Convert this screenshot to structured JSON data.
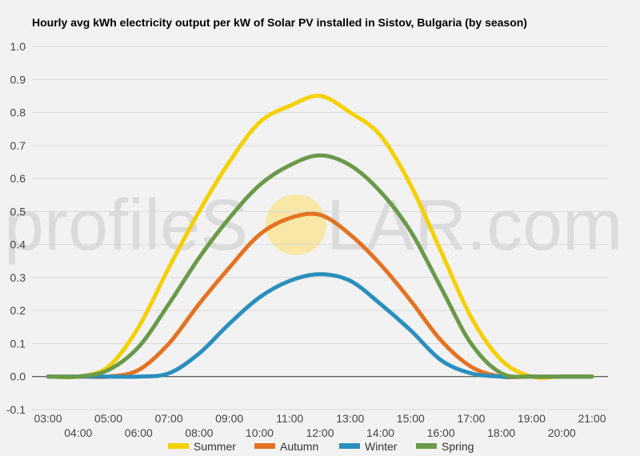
{
  "watermark": {
    "text_left": "profileS",
    "text_right": "LAR.com",
    "sun_color": "#f8e7a5"
  },
  "chart_data": {
    "type": "line",
    "title": "Hourly avg kWh electricity output per kW of Solar PV installed in Sistov, Bulgaria (by season)",
    "xlabel": "",
    "ylabel": "",
    "ylim": [
      -0.1,
      1.0
    ],
    "yticks": [
      "-0.1",
      "0.0",
      "0.1",
      "0.2",
      "0.3",
      "0.4",
      "0.5",
      "0.6",
      "0.7",
      "0.8",
      "0.9",
      "1.0"
    ],
    "x": [
      "03:00",
      "04:00",
      "05:00",
      "06:00",
      "07:00",
      "08:00",
      "09:00",
      "10:00",
      "11:00",
      "12:00",
      "13:00",
      "14:00",
      "15:00",
      "16:00",
      "17:00",
      "18:00",
      "19:00",
      "20:00",
      "21:00"
    ],
    "grid": true,
    "legend_position": "bottom",
    "series": [
      {
        "name": "Summer",
        "color": "#f5d000",
        "values": [
          0.0,
          0.0,
          0.03,
          0.15,
          0.33,
          0.5,
          0.65,
          0.77,
          0.82,
          0.85,
          0.8,
          0.73,
          0.58,
          0.38,
          0.18,
          0.05,
          0.0,
          0.0,
          0.0
        ]
      },
      {
        "name": "Autumn",
        "color": "#e37221",
        "values": [
          0.0,
          0.0,
          0.0,
          0.02,
          0.1,
          0.22,
          0.33,
          0.43,
          0.48,
          0.49,
          0.43,
          0.34,
          0.23,
          0.11,
          0.03,
          0.0,
          0.0,
          0.0,
          0.0
        ]
      },
      {
        "name": "Winter",
        "color": "#2a8fbd",
        "values": [
          0.0,
          0.0,
          0.0,
          0.0,
          0.01,
          0.07,
          0.16,
          0.24,
          0.29,
          0.31,
          0.29,
          0.22,
          0.14,
          0.05,
          0.01,
          0.0,
          0.0,
          0.0,
          0.0
        ]
      },
      {
        "name": "Spring",
        "color": "#6a9a4a",
        "values": [
          0.0,
          0.0,
          0.02,
          0.09,
          0.22,
          0.36,
          0.48,
          0.58,
          0.64,
          0.67,
          0.64,
          0.56,
          0.44,
          0.27,
          0.1,
          0.01,
          0.0,
          0.0,
          0.0
        ]
      }
    ]
  }
}
